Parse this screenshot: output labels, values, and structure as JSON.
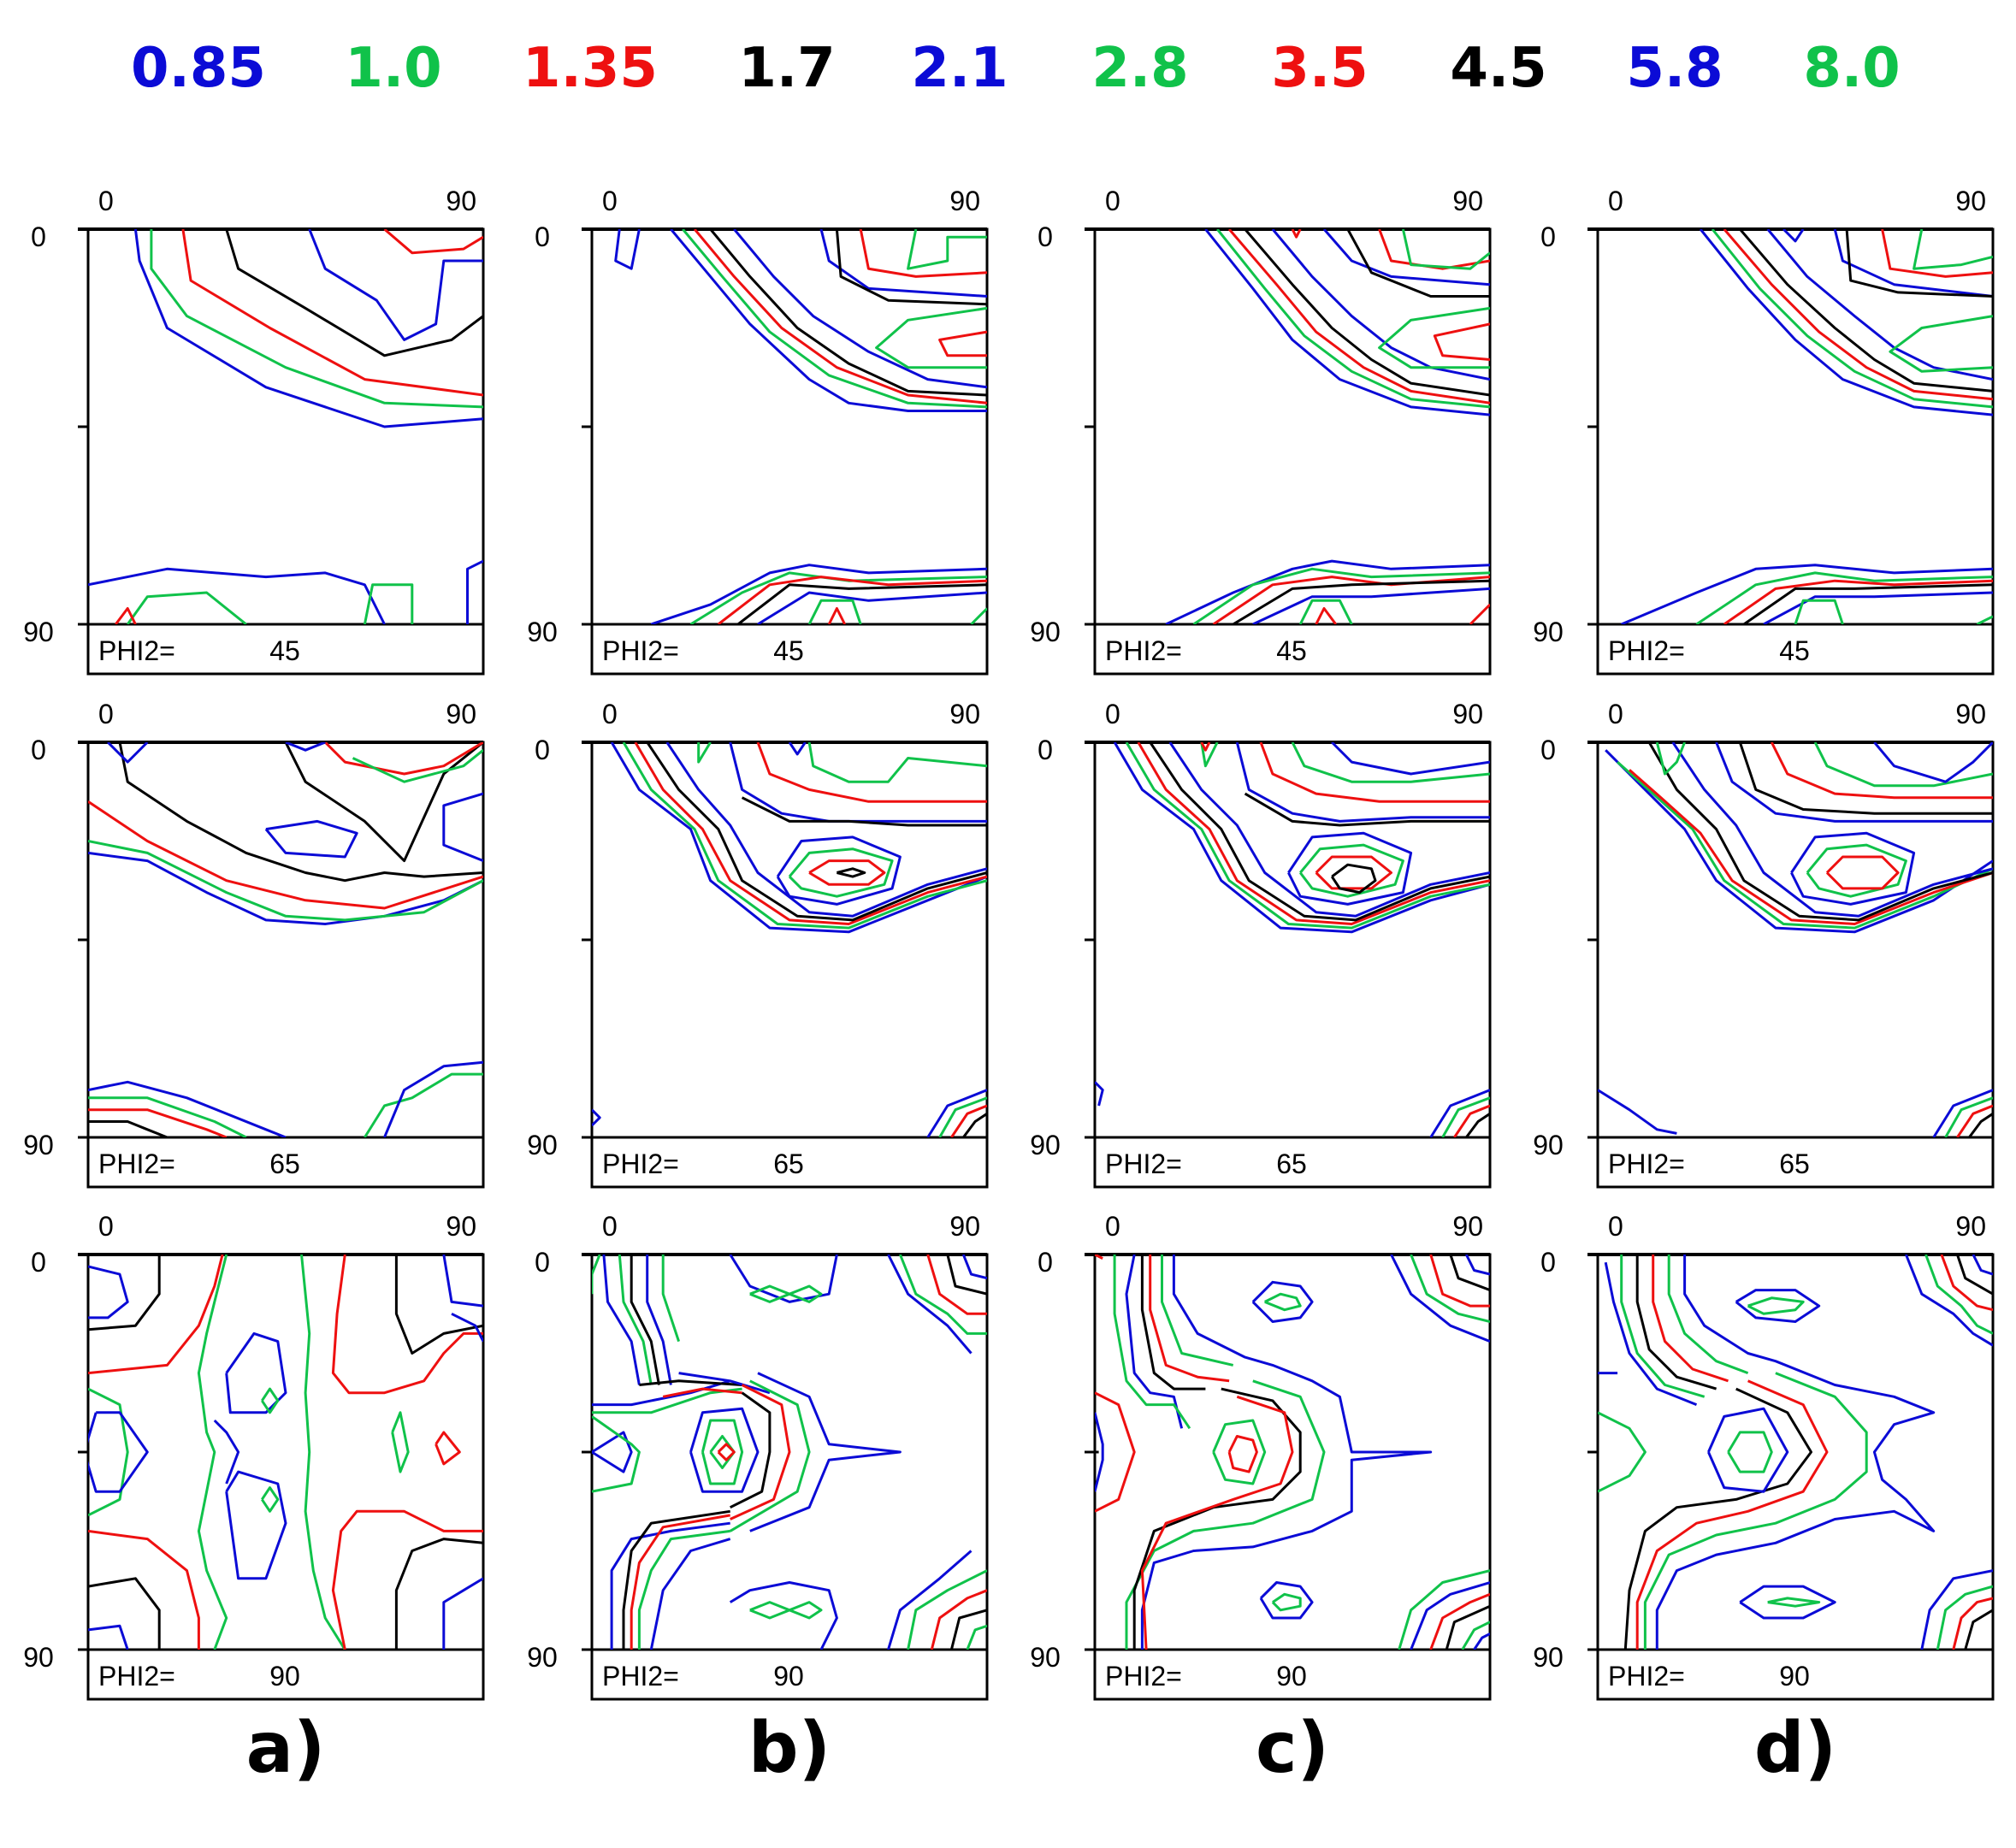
{
  "legend": {
    "levels": [
      {
        "label": "0.85",
        "color": "#0b0bd6"
      },
      {
        "label": "1.0",
        "color": "#10c24a"
      },
      {
        "label": "1.35",
        "color": "#ee1010"
      },
      {
        "label": "1.7",
        "color": "#000000"
      },
      {
        "label": "2.1",
        "color": "#0b0bd6"
      },
      {
        "label": "2.8",
        "color": "#10c24a"
      },
      {
        "label": "3.5",
        "color": "#ee1010"
      },
      {
        "label": "4.5",
        "color": "#000000"
      },
      {
        "label": "5.8",
        "color": "#0b0bd6"
      },
      {
        "label": "8.0",
        "color": "#10c24a"
      }
    ]
  },
  "axes": {
    "x_min": "0",
    "x_max": "90",
    "y_min": "0",
    "y_max": "90"
  },
  "section_label": "PHI2=",
  "sections": [
    "45",
    "65",
    "90"
  ],
  "columns": [
    {
      "caption": "a)"
    },
    {
      "caption": "b)"
    },
    {
      "caption": "c)"
    },
    {
      "caption": "d)"
    }
  ]
}
